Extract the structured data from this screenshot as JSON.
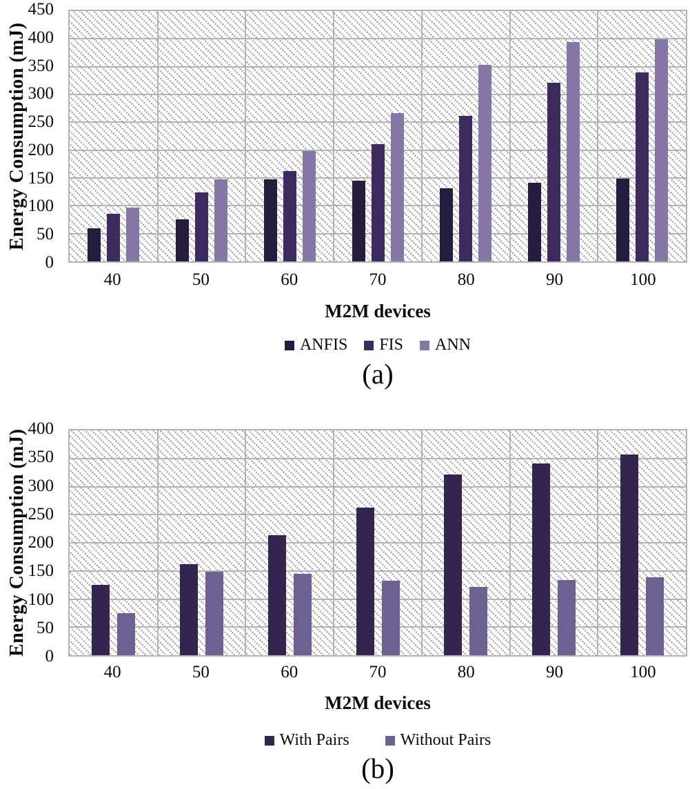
{
  "chart_data": [
    {
      "type": "bar",
      "caption": "(a)",
      "xlabel": "M2M devices",
      "ylabel": "Energy Consumption (mJ)",
      "ylim": [
        0,
        450
      ],
      "ystep": 50,
      "grid": "horizontal-and-category-separators",
      "legend_position": "bottom",
      "plot_pattern": "light-downward-diagonal-hatch",
      "gridline_color": "#b3b3b3",
      "categories": [
        "40",
        "50",
        "60",
        "70",
        "80",
        "90",
        "100"
      ],
      "series": [
        {
          "name": "ANFIS",
          "color": "#261a3f",
          "values": [
            59,
            76,
            148,
            145,
            132,
            141,
            149
          ]
        },
        {
          "name": "FIS",
          "color": "#3d2a5e",
          "values": [
            85,
            124,
            162,
            211,
            262,
            321,
            340
          ]
        },
        {
          "name": "ANN",
          "color": "#8678a4",
          "values": [
            97,
            147,
            198,
            267,
            353,
            394,
            399
          ]
        }
      ]
    },
    {
      "type": "bar",
      "caption": "(b)",
      "xlabel": "M2M devices",
      "ylabel": "Energy Consumption (mJ)",
      "ylim": [
        0,
        400
      ],
      "ystep": 50,
      "grid": "horizontal-and-category-separators",
      "legend_position": "bottom",
      "plot_pattern": "light-downward-diagonal-hatch",
      "gridline_color": "#b3b3b3",
      "categories": [
        "40",
        "50",
        "60",
        "70",
        "80",
        "90",
        "100"
      ],
      "series": [
        {
          "name": "With Pairs",
          "color": "#332550",
          "values": [
            125,
            162,
            213,
            262,
            322,
            341,
            357
          ]
        },
        {
          "name": "Without Pairs",
          "color": "#6f6092",
          "values": [
            75,
            148,
            145,
            132,
            121,
            134,
            139
          ]
        }
      ]
    }
  ]
}
